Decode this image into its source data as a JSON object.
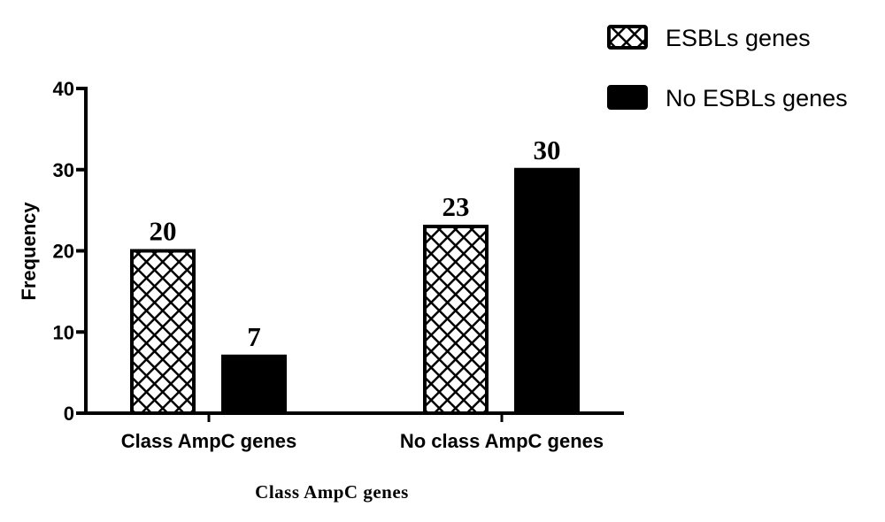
{
  "chart_data": {
    "type": "bar",
    "title": "",
    "xlabel": "Class AmpC genes",
    "ylabel": "Frequency",
    "ylim": [
      0,
      40
    ],
    "yticks": [
      0,
      10,
      20,
      30,
      40
    ],
    "categories": [
      "Class AmpC genes",
      "No class AmpC genes"
    ],
    "series": [
      {
        "name": "ESBLs genes",
        "values": [
          20,
          23
        ],
        "fill": "crosshatch",
        "color": "#000000"
      },
      {
        "name": "No ESBLs genes",
        "values": [
          7,
          30
        ],
        "fill": "solid",
        "color": "#000000"
      }
    ],
    "data_labels": true,
    "grid": false,
    "legend": "top-right"
  }
}
